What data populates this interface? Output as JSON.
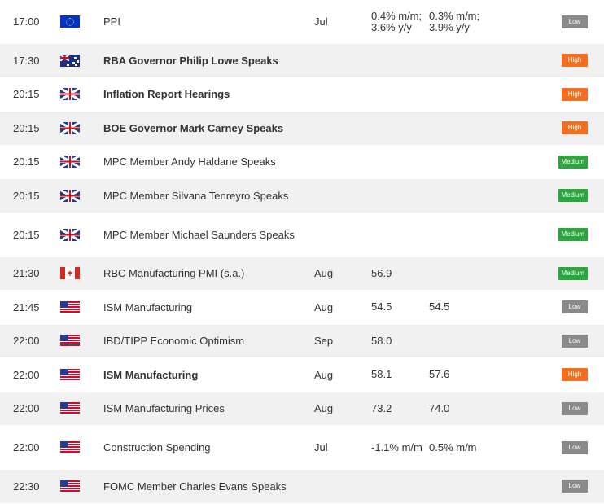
{
  "events": [
    {
      "time": "17:00",
      "flag": "eu",
      "event": "PPI",
      "bold": false,
      "period": "Jul",
      "actual": "0.4% m/m; 3.6% y/y",
      "forecast": "0.3% m/m; 3.9% y/y",
      "impact": "Low"
    },
    {
      "time": "17:30",
      "flag": "au",
      "event": "RBA Governor Philip Lowe Speaks",
      "bold": true,
      "period": "",
      "actual": "",
      "forecast": "",
      "impact": "High"
    },
    {
      "time": "20:15",
      "flag": "uk",
      "event": "Inflation Report Hearings",
      "bold": true,
      "period": "",
      "actual": "",
      "forecast": "",
      "impact": "High"
    },
    {
      "time": "20:15",
      "flag": "uk",
      "event": "BOE Governor Mark Carney Speaks",
      "bold": true,
      "period": "",
      "actual": "",
      "forecast": "",
      "impact": "High"
    },
    {
      "time": "20:15",
      "flag": "uk",
      "event": "MPC Member Andy Haldane Speaks",
      "bold": false,
      "period": "",
      "actual": "",
      "forecast": "",
      "impact": "Medium"
    },
    {
      "time": "20:15",
      "flag": "uk",
      "event": "MPC Member Silvana Tenreyro Speaks",
      "bold": false,
      "period": "",
      "actual": "",
      "forecast": "",
      "impact": "Medium"
    },
    {
      "time": "20:15",
      "flag": "uk",
      "event": "MPC Member Michael Saunders Speaks",
      "bold": false,
      "period": "",
      "actual": "",
      "forecast": "",
      "impact": "Medium"
    },
    {
      "time": "21:30",
      "flag": "ca",
      "event": "RBC Manufacturing PMI (s.a.)",
      "bold": false,
      "period": "Aug",
      "actual": "56.9",
      "forecast": "",
      "impact": "Medium"
    },
    {
      "time": "21:45",
      "flag": "us",
      "event": "ISM Manufacturing",
      "bold": false,
      "period": "Aug",
      "actual": "54.5",
      "forecast": "54.5",
      "impact": "Low"
    },
    {
      "time": "22:00",
      "flag": "us",
      "event": "IBD/TIPP Economic Optimism",
      "bold": false,
      "period": "Sep",
      "actual": "58.0",
      "forecast": "",
      "impact": "Low"
    },
    {
      "time": "22:00",
      "flag": "us",
      "event": "ISM Manufacturing",
      "bold": true,
      "period": "Aug",
      "actual": "58.1",
      "forecast": "57.6",
      "impact": "High"
    },
    {
      "time": "22:00",
      "flag": "us",
      "event": "ISM Manufacturing Prices",
      "bold": false,
      "period": "Aug",
      "actual": "73.2",
      "forecast": "74.0",
      "impact": "Low"
    },
    {
      "time": "22:00",
      "flag": "us",
      "event": "Construction Spending",
      "bold": false,
      "period": "Jul",
      "actual": "-1.1% m/m",
      "forecast": "0.5% m/m",
      "impact": "Low"
    },
    {
      "time": "22:30",
      "flag": "us",
      "event": "FOMC Member Charles Evans Speaks",
      "bold": false,
      "period": "",
      "actual": "",
      "forecast": "",
      "impact": "Low"
    }
  ],
  "colors": {
    "low": "#8a8a8a",
    "high": "#f26f21",
    "medium": "#2ca53c",
    "row_alt": "#f1f1f1"
  }
}
